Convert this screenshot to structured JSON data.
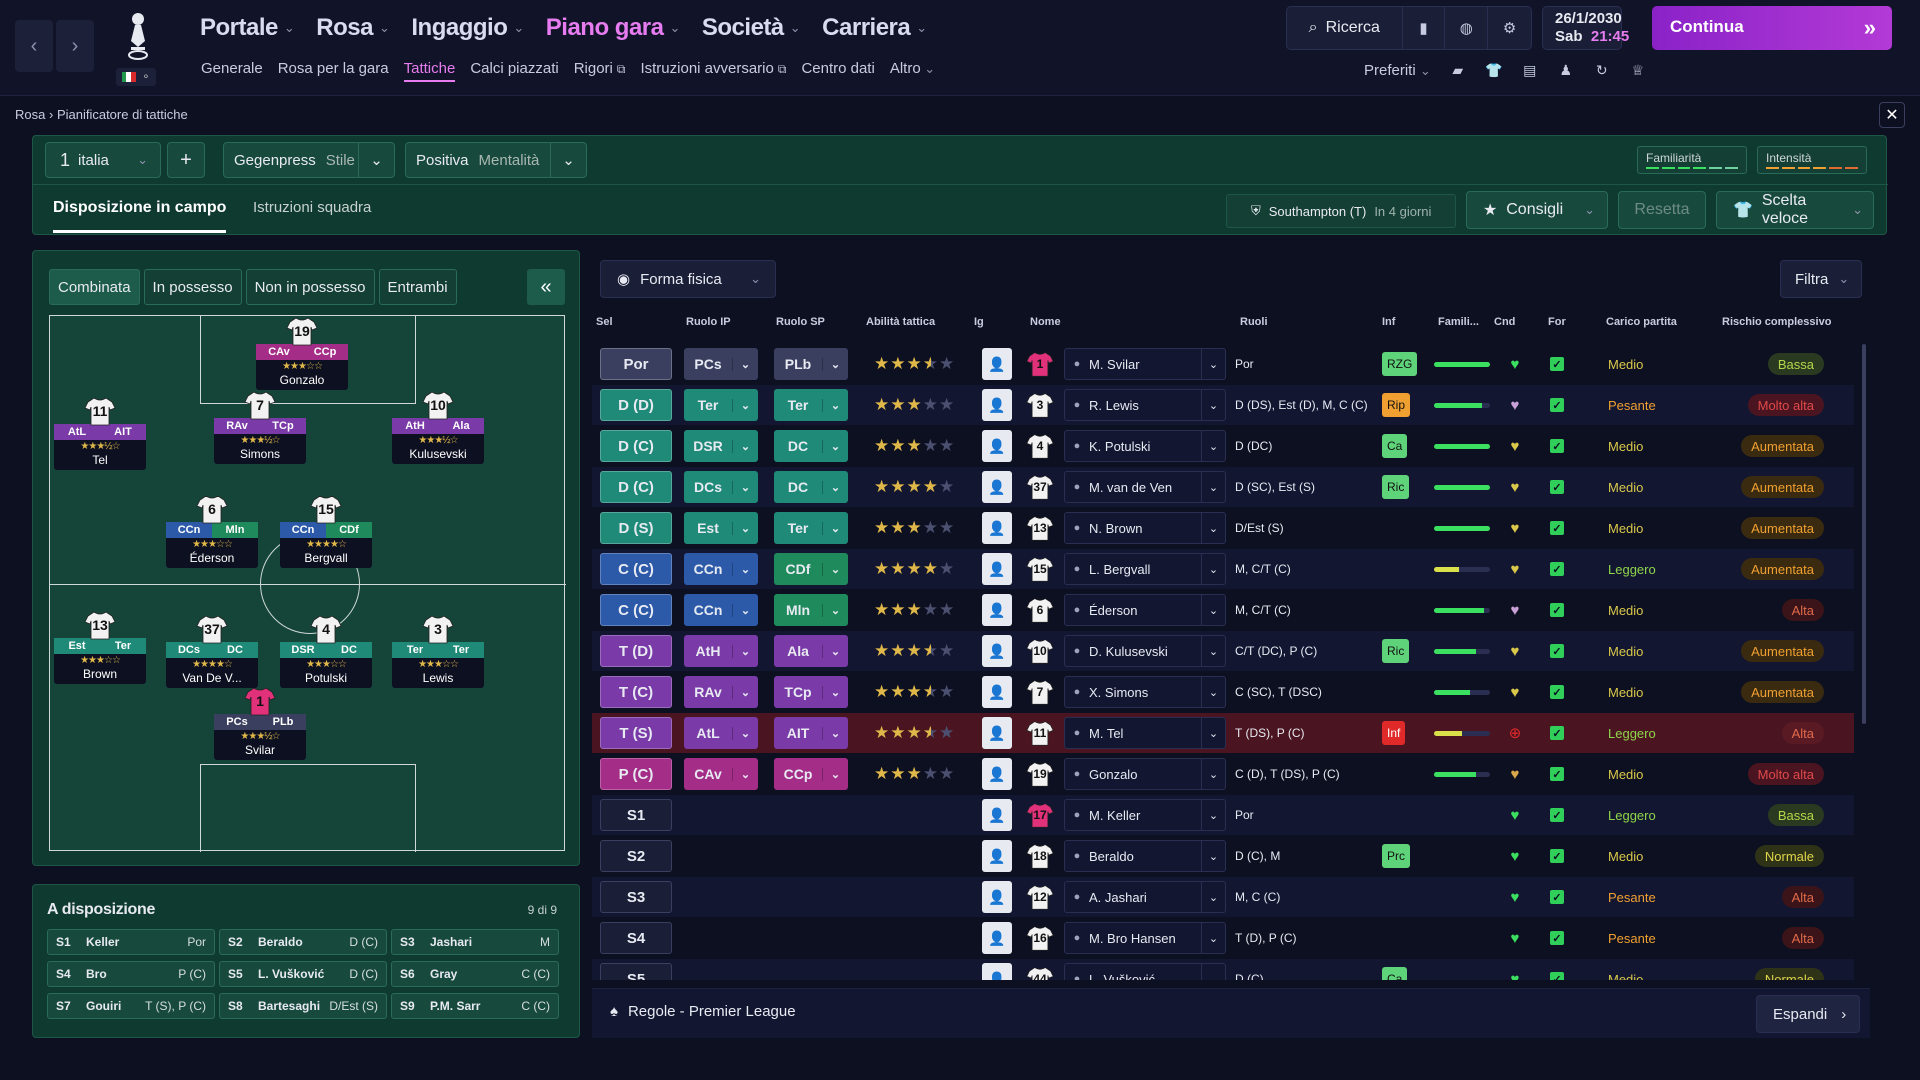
{
  "topbar": {
    "main_nav": [
      {
        "label": "Portale",
        "active": false
      },
      {
        "label": "Rosa",
        "active": false
      },
      {
        "label": "Ingaggio",
        "active": false
      },
      {
        "label": "Piano gara",
        "active": true
      },
      {
        "label": "Società",
        "active": false
      },
      {
        "label": "Carriera",
        "active": false
      }
    ],
    "sub_nav": [
      {
        "label": "Generale",
        "active": false,
        "ext": false
      },
      {
        "label": "Rosa per la gara",
        "active": false,
        "ext": false
      },
      {
        "label": "Tattiche",
        "active": true,
        "ext": false
      },
      {
        "label": "Calci piazzati",
        "active": false,
        "ext": false
      },
      {
        "label": "Rigori",
        "active": false,
        "ext": true
      },
      {
        "label": "Istruzioni avversario",
        "active": false,
        "ext": true
      },
      {
        "label": "Centro dati",
        "active": false,
        "ext": false
      },
      {
        "label": "Altro",
        "active": false,
        "ext": false
      }
    ],
    "search_label": "Ricerca",
    "date": "26/1/2030",
    "day": "Sab",
    "time": "21:45",
    "continue_label": "Continua",
    "favorites_label": "Preferiti"
  },
  "breadcrumb": {
    "root": "Rosa",
    "current": "Pianificatore di tattiche"
  },
  "header": {
    "tactic_number": "1",
    "tactic_name": "italia",
    "style_value": "Gegenpress",
    "style_label": "Stile",
    "mentality_value": "Positiva",
    "mentality_label": "Mentalità",
    "familiarity_label": "Familiarità",
    "intensity_label": "Intensità",
    "tabs": [
      "Disposizione in campo",
      "Istruzioni squadra"
    ],
    "opponent": "Southampton (T)",
    "opponent_when": "In 4 giorni",
    "advice_label": "Consigli",
    "reset_label": "Resetta",
    "quick_pick_label": "Scelta veloce"
  },
  "pitch": {
    "tabs": [
      "Combinata",
      "In possesso",
      "Non in possesso",
      "Entrambi"
    ],
    "players": [
      {
        "num": "19",
        "r1": "CAv",
        "r2": "CCp",
        "c1": "#a42d87",
        "c2": "#a42d87",
        "stars": "★★★☆☆",
        "name": "Gonzalo",
        "gk": false
      },
      {
        "num": "11",
        "r1": "AtL",
        "r2": "AIT",
        "c1": "#7a3ba8",
        "c2": "#7a3ba8",
        "stars": "★★★½☆",
        "name": "Tel",
        "gk": false
      },
      {
        "num": "7",
        "r1": "RAv",
        "r2": "TCp",
        "c1": "#7a3ba8",
        "c2": "#7a3ba8",
        "stars": "★★★½☆",
        "name": "Simons",
        "gk": false
      },
      {
        "num": "10",
        "r1": "AtH",
        "r2": "Ala",
        "c1": "#7a3ba8",
        "c2": "#7a3ba8",
        "stars": "★★★½☆",
        "name": "Kulusevski",
        "gk": false
      },
      {
        "num": "6",
        "r1": "CCn",
        "r2": "Mln",
        "c1": "#2c5aa8",
        "c2": "#1f8a5c",
        "stars": "★★★☆☆",
        "name": "Éderson",
        "gk": false
      },
      {
        "num": "15",
        "r1": "CCn",
        "r2": "CDf",
        "c1": "#2c5aa8",
        "c2": "#1f8a5c",
        "stars": "★★★★☆",
        "name": "Bergvall",
        "gk": false
      },
      {
        "num": "13",
        "r1": "Est",
        "r2": "Ter",
        "c1": "#1f8a78",
        "c2": "#1f8a78",
        "stars": "★★★☆☆",
        "name": "Brown",
        "gk": false
      },
      {
        "num": "37",
        "r1": "DCs",
        "r2": "DC",
        "c1": "#1f8a78",
        "c2": "#1f8a78",
        "stars": "★★★★☆",
        "name": "Van De V...",
        "gk": false
      },
      {
        "num": "4",
        "r1": "DSR",
        "r2": "DC",
        "c1": "#1f8a78",
        "c2": "#1f8a78",
        "stars": "★★★☆☆",
        "name": "Potulski",
        "gk": false
      },
      {
        "num": "3",
        "r1": "Ter",
        "r2": "Ter",
        "c1": "#1f8a78",
        "c2": "#1f8a78",
        "stars": "★★★☆☆",
        "name": "Lewis",
        "gk": false
      },
      {
        "num": "1",
        "r1": "PCs",
        "r2": "PLb",
        "c1": "#3a3f60",
        "c2": "#3a3f60",
        "stars": "★★★½☆",
        "name": "Svilar",
        "gk": true
      }
    ]
  },
  "subs": {
    "title": "A disposizione",
    "count": "9 di 9",
    "items": [
      {
        "slot": "S1",
        "name": "Keller",
        "role": "Por"
      },
      {
        "slot": "S2",
        "name": "Beraldo",
        "role": "D (C)"
      },
      {
        "slot": "S3",
        "name": "Jashari",
        "role": "M"
      },
      {
        "slot": "S4",
        "name": "Bro",
        "role": "P (C)"
      },
      {
        "slot": "S5",
        "name": "L. Vušković",
        "role": "D (C)"
      },
      {
        "slot": "S6",
        "name": "Gray",
        "role": "C (C)"
      },
      {
        "slot": "S7",
        "name": "Gouiri",
        "role": "T (S), P (C)"
      },
      {
        "slot": "S8",
        "name": "Bartesaghi",
        "role": "D/Est (S)"
      },
      {
        "slot": "S9",
        "name": "P.M. Sarr",
        "role": "C (C)"
      }
    ]
  },
  "table": {
    "view_label": "Forma fisica",
    "filter_label": "Filtra",
    "headers": {
      "sel": "Sel",
      "ruolo_ip": "Ruolo IP",
      "ruolo_sp": "Ruolo SP",
      "abilita": "Abilità tattica",
      "ig": "Ig",
      "nome": "Nome",
      "ruoli": "Ruoli",
      "inf": "Inf",
      "famil": "Famili...",
      "cnd": "Cnd",
      "for": "For",
      "carico": "Carico partita",
      "rischio": "Rischio complessivo"
    },
    "rows": [
      {
        "pos": "Por",
        "pos_color": "#3a3f60",
        "ip": "PCs",
        "sp": "PLb",
        "role_color": "#3a3f60",
        "sp_color": "#3a3f60",
        "stars": 3.5,
        "num": "1",
        "gk": true,
        "name": "M. Svilar",
        "ruoli": "Por",
        "inf": "RZG",
        "inf_color": "#5fd37a",
        "fam": 1.0,
        "cnd_color": "#3ce060",
        "carico": "Medio",
        "carico_color": "#d9c84a",
        "rischio": "Bassa",
        "rischio_bg": "#2a3a20",
        "rischio_fg": "#b5d64a",
        "state": ""
      },
      {
        "pos": "D (D)",
        "pos_color": "#1f8a78",
        "ip": "Ter",
        "sp": "Ter",
        "role_color": "#1f8a78",
        "sp_color": "#1f8a78",
        "stars": 3,
        "num": "3",
        "gk": false,
        "name": "R. Lewis",
        "ruoli": "D (DS), Est (D), M, C (C)",
        "inf": "Rip",
        "inf_color": "#f0a030",
        "fam": 0.85,
        "cnd_color": "#c9a0d8",
        "carico": "Pesante",
        "carico_color": "#f0a030",
        "rischio": "Molto alta",
        "rischio_bg": "#4a1420",
        "rischio_fg": "#e04a4a",
        "state": ""
      },
      {
        "pos": "D (C)",
        "pos_color": "#1f8a78",
        "ip": "DSR",
        "sp": "DC",
        "role_color": "#1f8a78",
        "sp_color": "#1f8a78",
        "stars": 3,
        "num": "4",
        "gk": false,
        "name": "K. Potulski",
        "ruoli": "D (DC)",
        "inf": "Ca",
        "inf_color": "#5fd37a",
        "fam": 1.0,
        "cnd_color": "#d9c84a",
        "carico": "Medio",
        "carico_color": "#d9c84a",
        "rischio": "Aumentata",
        "rischio_bg": "#3a2a10",
        "rischio_fg": "#f0a030",
        "state": ""
      },
      {
        "pos": "D (C)",
        "pos_color": "#1f8a78",
        "ip": "DCs",
        "sp": "DC",
        "role_color": "#1f8a78",
        "sp_color": "#1f8a78",
        "stars": 4,
        "num": "37",
        "gk": false,
        "name": "M. van de Ven",
        "ruoli": "D (SC), Est (S)",
        "inf": "Ric",
        "inf_color": "#5fd37a",
        "fam": 1.0,
        "cnd_color": "#d9c84a",
        "carico": "Medio",
        "carico_color": "#d9c84a",
        "rischio": "Aumentata",
        "rischio_bg": "#3a2a10",
        "rischio_fg": "#f0a030",
        "state": ""
      },
      {
        "pos": "D (S)",
        "pos_color": "#1f8a78",
        "ip": "Est",
        "sp": "Ter",
        "role_color": "#1f8a78",
        "sp_color": "#1f8a78",
        "stars": 3,
        "num": "13",
        "gk": false,
        "name": "N. Brown",
        "ruoli": "D/Est (S)",
        "inf": "",
        "inf_color": "",
        "fam": 1.0,
        "cnd_color": "#d9c84a",
        "carico": "Medio",
        "carico_color": "#d9c84a",
        "rischio": "Aumentata",
        "rischio_bg": "#3a2a10",
        "rischio_fg": "#f0a030",
        "state": ""
      },
      {
        "pos": "C (C)",
        "pos_color": "#2c5aa8",
        "ip": "CCn",
        "sp": "CDf",
        "role_color": "#2c5aa8",
        "sp_color": "#1f8a5c",
        "stars": 4,
        "num": "15",
        "gk": false,
        "name": "L. Bergvall",
        "ruoli": "M, C/T (C)",
        "inf": "",
        "inf_color": "",
        "fam": 0.45,
        "cnd_color": "#d9c84a",
        "carico": "Leggero",
        "carico_color": "#8fd64a",
        "rischio": "Aumentata",
        "rischio_bg": "#3a2a10",
        "rischio_fg": "#f0a030",
        "state": ""
      },
      {
        "pos": "C (C)",
        "pos_color": "#2c5aa8",
        "ip": "CCn",
        "sp": "Mln",
        "role_color": "#2c5aa8",
        "sp_color": "#1f8a5c",
        "stars": 3,
        "num": "6",
        "gk": false,
        "name": "Éderson",
        "ruoli": "M, C/T (C)",
        "inf": "",
        "inf_color": "",
        "fam": 0.9,
        "cnd_color": "#c9a0d8",
        "carico": "Medio",
        "carico_color": "#d9c84a",
        "rischio": "Alta",
        "rischio_bg": "#3a1418",
        "rischio_fg": "#e06a4a",
        "state": ""
      },
      {
        "pos": "T (D)",
        "pos_color": "#7a3ba8",
        "ip": "AtH",
        "sp": "Ala",
        "role_color": "#7a3ba8",
        "sp_color": "#7a3ba8",
        "stars": 3.5,
        "num": "10",
        "gk": false,
        "name": "D. Kulusevski",
        "ruoli": "C/T (DC), P (C)",
        "inf": "Ric",
        "inf_color": "#5fd37a",
        "fam": 0.75,
        "cnd_color": "#d9c84a",
        "carico": "Medio",
        "carico_color": "#d9c84a",
        "rischio": "Aumentata",
        "rischio_bg": "#3a2a10",
        "rischio_fg": "#f0a030",
        "state": ""
      },
      {
        "pos": "T (C)",
        "pos_color": "#7a3ba8",
        "ip": "RAv",
        "sp": "TCp",
        "role_color": "#7a3ba8",
        "sp_color": "#7a3ba8",
        "stars": 3.5,
        "num": "7",
        "gk": false,
        "name": "X. Simons",
        "ruoli": "C (SC), T (DSC)",
        "inf": "",
        "inf_color": "",
        "fam": 0.65,
        "cnd_color": "#d9c84a",
        "carico": "Medio",
        "carico_color": "#d9c84a",
        "rischio": "Aumentata",
        "rischio_bg": "#3a2a10",
        "rischio_fg": "#f0a030",
        "state": ""
      },
      {
        "pos": "T (S)",
        "pos_color": "#7a3ba8",
        "ip": "AtL",
        "sp": "AIT",
        "role_color": "#7a3ba8",
        "sp_color": "#7a3ba8",
        "stars": 3.5,
        "num": "11",
        "gk": false,
        "name": "M. Tel",
        "ruoli": "T (DS), P (C)",
        "inf": "Inf",
        "inf_color": "#e02a2a",
        "fam": 0.5,
        "cnd_color": "#e02a2a",
        "carico": "Leggero",
        "carico_color": "#8fd64a",
        "rischio": "Alta",
        "rischio_bg": "#5a1a24",
        "rischio_fg": "#e06a4a",
        "state": "injured"
      },
      {
        "pos": "P (C)",
        "pos_color": "#a42d87",
        "ip": "CAv",
        "sp": "CCp",
        "role_color": "#a42d87",
        "sp_color": "#a42d87",
        "stars": 3,
        "num": "19",
        "gk": false,
        "name": "Gonzalo",
        "ruoli": "C (D), T (DS), P (C)",
        "inf": "",
        "inf_color": "",
        "fam": 0.75,
        "cnd_color": "#d9a84a",
        "carico": "Medio",
        "carico_color": "#d9c84a",
        "rischio": "Molto alta",
        "rischio_bg": "#4a1420",
        "rischio_fg": "#e04a4a",
        "state": ""
      },
      {
        "pos": "S1",
        "pos_color": "#2a2f52",
        "ip": "",
        "sp": "",
        "role_color": "",
        "sp_color": "",
        "stars": 0,
        "num": "17",
        "gk": true,
        "name": "M. Keller",
        "ruoli": "Por",
        "inf": "",
        "inf_color": "",
        "fam": 0,
        "cnd_color": "#3ce060",
        "carico": "Leggero",
        "carico_color": "#8fd64a",
        "rischio": "Bassa",
        "rischio_bg": "#2a3a20",
        "rischio_fg": "#b5d64a",
        "state": ""
      },
      {
        "pos": "S2",
        "pos_color": "#2a2f52",
        "ip": "",
        "sp": "",
        "role_color": "",
        "sp_color": "",
        "stars": 0,
        "num": "18",
        "gk": false,
        "name": "Beraldo",
        "ruoli": "D (C), M",
        "inf": "Prc",
        "inf_color": "#5fd37a",
        "fam": 0,
        "cnd_color": "#3ce060",
        "carico": "Medio",
        "carico_color": "#d9c84a",
        "rischio": "Normale",
        "rischio_bg": "#2e3318",
        "rischio_fg": "#e0d44a",
        "state": ""
      },
      {
        "pos": "S3",
        "pos_color": "#2a2f52",
        "ip": "",
        "sp": "",
        "role_color": "",
        "sp_color": "",
        "stars": 0,
        "num": "12",
        "gk": false,
        "name": "A. Jashari",
        "ruoli": "M, C (C)",
        "inf": "",
        "inf_color": "",
        "fam": 0,
        "cnd_color": "#3ce060",
        "carico": "Pesante",
        "carico_color": "#f0a030",
        "rischio": "Alta",
        "rischio_bg": "#3a1418",
        "rischio_fg": "#e06a4a",
        "state": ""
      },
      {
        "pos": "S4",
        "pos_color": "#2a2f52",
        "ip": "",
        "sp": "",
        "role_color": "",
        "sp_color": "",
        "stars": 0,
        "num": "16",
        "gk": false,
        "name": "M. Bro Hansen",
        "ruoli": "T (D), P (C)",
        "inf": "",
        "inf_color": "",
        "fam": 0,
        "cnd_color": "#3ce060",
        "carico": "Pesante",
        "carico_color": "#f0a030",
        "rischio": "Alta",
        "rischio_bg": "#3a1418",
        "rischio_fg": "#e06a4a",
        "state": ""
      },
      {
        "pos": "S5",
        "pos_color": "#2a2f52",
        "ip": "",
        "sp": "",
        "role_color": "",
        "sp_color": "",
        "stars": 0,
        "num": "44",
        "gk": false,
        "name": "L. Vušković",
        "ruoli": "D (C)",
        "inf": "Ca",
        "inf_color": "#5fd37a",
        "fam": 0,
        "cnd_color": "#3ce060",
        "carico": "Medio",
        "carico_color": "#d9c84a",
        "rischio": "Normale",
        "rischio_bg": "#2e3318",
        "rischio_fg": "#e0d44a",
        "state": ""
      }
    ],
    "footer_rules": "Regole - Premier League",
    "expand_label": "Espandi"
  },
  "colors": {
    "accent": "#e67cf0",
    "continue": "#b33ad6",
    "panel_green": "#0f3a30"
  }
}
